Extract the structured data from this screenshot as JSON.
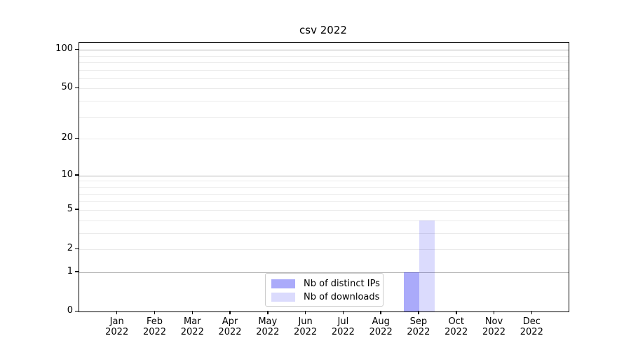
{
  "chart_data": {
    "type": "bar",
    "title": "csv 2022",
    "categories": [
      "Jan",
      "Feb",
      "Mar",
      "Apr",
      "May",
      "Jun",
      "Jul",
      "Aug",
      "Sep",
      "Oct",
      "Nov",
      "Dec"
    ],
    "category_sub_label": "2022",
    "series": [
      {
        "name": "Nb of distinct IPs",
        "color": "rgba(0,0,240,0.335)",
        "values": [
          0,
          0,
          0,
          0,
          0,
          0,
          0,
          0,
          1,
          0,
          0,
          0
        ]
      },
      {
        "name": "Nb of downloads",
        "color": "rgba(0,0,240,0.14)",
        "values": [
          0,
          0,
          0,
          0,
          0,
          0,
          0,
          0,
          4,
          0,
          0,
          0
        ]
      }
    ],
    "y_axis": {
      "scale": "log1p",
      "tick_labels": [
        0,
        1,
        2,
        5,
        10,
        20,
        50,
        100
      ],
      "major_gridlines": [
        1,
        10,
        100
      ],
      "minor_gridlines": [
        2,
        3,
        4,
        5,
        6,
        7,
        8,
        9,
        20,
        30,
        40,
        50,
        60,
        70,
        80,
        90
      ],
      "ylim": [
        0,
        113.3
      ]
    },
    "xlabel": "",
    "ylabel": "",
    "grid": true,
    "legend_position": "bottom-center"
  },
  "colors": {
    "axis": "#000000",
    "major_grid": "#b4b4b4",
    "minor_grid": "#ebebeb",
    "legend_border": "#cccccc",
    "text": "#000000",
    "background": "#ffffff"
  }
}
